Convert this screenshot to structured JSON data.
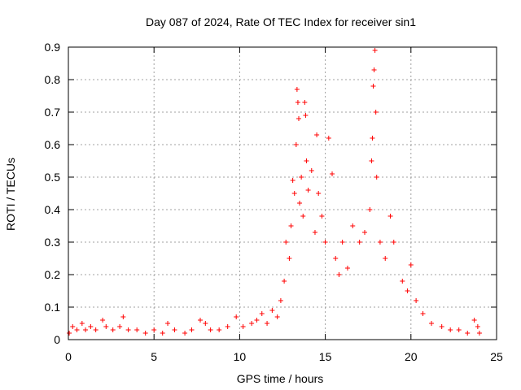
{
  "chart_data": {
    "type": "scatter",
    "title": "Day 087 of 2024, Rate Of TEC Index for receiver sin1",
    "xlabel": "GPS time / hours",
    "ylabel": "ROTI / TECUs",
    "xlim": [
      0,
      25
    ],
    "ylim": [
      0,
      0.9
    ],
    "xticks": [
      0,
      5,
      10,
      15,
      20,
      25
    ],
    "xtick_labels": [
      "0",
      "5",
      "10",
      "15",
      "20",
      "25"
    ],
    "yticks": [
      0,
      0.1,
      0.2,
      0.3,
      0.4,
      0.5,
      0.6,
      0.7,
      0.8,
      0.9
    ],
    "ytick_labels": [
      "0",
      "0.1",
      "0.2",
      "0.3",
      "0.4",
      "0.5",
      "0.6",
      "0.7",
      "0.8",
      "0.9"
    ],
    "grid": true,
    "marker": "+",
    "color": "#ff0000",
    "series": [
      {
        "name": "ROTI",
        "points": [
          [
            0.05,
            0.02
          ],
          [
            0.25,
            0.04
          ],
          [
            0.5,
            0.03
          ],
          [
            0.8,
            0.05
          ],
          [
            1.0,
            0.03
          ],
          [
            1.3,
            0.04
          ],
          [
            1.6,
            0.03
          ],
          [
            2.0,
            0.06
          ],
          [
            2.2,
            0.04
          ],
          [
            2.6,
            0.03
          ],
          [
            3.0,
            0.04
          ],
          [
            3.2,
            0.07
          ],
          [
            3.5,
            0.03
          ],
          [
            4.0,
            0.03
          ],
          [
            4.5,
            0.02
          ],
          [
            5.0,
            0.03
          ],
          [
            5.5,
            0.02
          ],
          [
            5.8,
            0.05
          ],
          [
            6.2,
            0.03
          ],
          [
            6.8,
            0.02
          ],
          [
            7.2,
            0.03
          ],
          [
            7.7,
            0.06
          ],
          [
            8.0,
            0.05
          ],
          [
            8.3,
            0.03
          ],
          [
            8.8,
            0.03
          ],
          [
            9.3,
            0.04
          ],
          [
            9.8,
            0.07
          ],
          [
            10.2,
            0.04
          ],
          [
            10.7,
            0.05
          ],
          [
            11.0,
            0.06
          ],
          [
            11.3,
            0.08
          ],
          [
            11.6,
            0.05
          ],
          [
            11.9,
            0.09
          ],
          [
            12.2,
            0.07
          ],
          [
            12.4,
            0.12
          ],
          [
            12.6,
            0.18
          ],
          [
            12.7,
            0.3
          ],
          [
            12.9,
            0.25
          ],
          [
            13.0,
            0.35
          ],
          [
            13.1,
            0.49
          ],
          [
            13.2,
            0.45
          ],
          [
            13.3,
            0.6
          ],
          [
            13.35,
            0.77
          ],
          [
            13.4,
            0.73
          ],
          [
            13.45,
            0.68
          ],
          [
            13.5,
            0.42
          ],
          [
            13.6,
            0.5
          ],
          [
            13.7,
            0.38
          ],
          [
            13.8,
            0.73
          ],
          [
            13.85,
            0.69
          ],
          [
            13.9,
            0.55
          ],
          [
            14.0,
            0.46
          ],
          [
            14.2,
            0.52
          ],
          [
            14.4,
            0.33
          ],
          [
            14.5,
            0.63
          ],
          [
            14.6,
            0.45
          ],
          [
            14.8,
            0.38
          ],
          [
            15.0,
            0.3
          ],
          [
            15.2,
            0.62
          ],
          [
            15.4,
            0.51
          ],
          [
            15.6,
            0.25
          ],
          [
            15.8,
            0.2
          ],
          [
            16.0,
            0.3
          ],
          [
            16.3,
            0.22
          ],
          [
            16.6,
            0.35
          ],
          [
            17.0,
            0.3
          ],
          [
            17.3,
            0.33
          ],
          [
            17.6,
            0.4
          ],
          [
            17.7,
            0.55
          ],
          [
            17.75,
            0.62
          ],
          [
            17.8,
            0.78
          ],
          [
            17.85,
            0.83
          ],
          [
            17.9,
            0.89
          ],
          [
            17.95,
            0.7
          ],
          [
            18.0,
            0.5
          ],
          [
            18.2,
            0.3
          ],
          [
            18.5,
            0.25
          ],
          [
            18.8,
            0.38
          ],
          [
            19.0,
            0.3
          ],
          [
            19.5,
            0.18
          ],
          [
            19.8,
            0.15
          ],
          [
            20.0,
            0.23
          ],
          [
            20.3,
            0.12
          ],
          [
            20.7,
            0.08
          ],
          [
            21.2,
            0.05
          ],
          [
            21.8,
            0.04
          ],
          [
            22.3,
            0.03
          ],
          [
            22.8,
            0.03
          ],
          [
            23.3,
            0.02
          ],
          [
            23.7,
            0.06
          ],
          [
            23.9,
            0.04
          ],
          [
            24.0,
            0.02
          ]
        ]
      }
    ]
  }
}
